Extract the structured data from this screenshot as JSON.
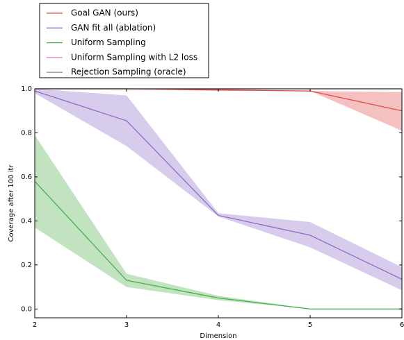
{
  "chart_data": {
    "type": "line",
    "x_label": "Dimension",
    "y_label": "Coverage after 100 itr",
    "x": [
      2,
      3,
      4,
      5,
      6
    ],
    "series": [
      {
        "name": "Goal GAN (ours)",
        "color": "#e24a4a",
        "values": [
          1.0,
          1.0,
          0.995,
          0.99,
          0.9
        ],
        "lower": [
          1.0,
          1.0,
          0.99,
          0.99,
          0.81
        ],
        "upper": [
          1.0,
          1.0,
          1.0,
          0.99,
          0.985
        ]
      },
      {
        "name": "GAN fit all (ablation)",
        "color": "#8e6cc8",
        "values": [
          0.99,
          0.855,
          0.425,
          0.335,
          0.135
        ],
        "lower": [
          0.98,
          0.74,
          0.42,
          0.28,
          0.085
        ],
        "upper": [
          1.0,
          0.97,
          0.435,
          0.395,
          0.19
        ]
      },
      {
        "name": "Uniform Sampling",
        "color": "#4daf4a",
        "values": [
          0.58,
          0.13,
          0.05,
          0.0,
          0.0
        ],
        "lower": [
          0.37,
          0.1,
          0.04,
          0.0,
          0.0
        ],
        "upper": [
          0.79,
          0.16,
          0.06,
          0.0,
          0.0
        ]
      },
      {
        "name": "Uniform Sampling with L2 loss",
        "color": "#e377c2",
        "values": [
          null,
          null,
          null,
          null,
          null
        ]
      },
      {
        "name": "Rejection Sampling (oracle)",
        "color": "#999999",
        "values": [
          1.0,
          1.0,
          1.0,
          1.0,
          1.0
        ]
      }
    ],
    "xlim": [
      2,
      6
    ],
    "xticks": [
      2,
      3,
      4,
      5,
      6
    ],
    "ylim": [
      -0.04,
      1.0
    ],
    "yticks": [
      {
        "value": 0,
        "label": "0.0"
      },
      0.2,
      0.4,
      0.6,
      0.8,
      {
        "value": 1,
        "label": "1.0"
      }
    ],
    "legend": "upper left"
  }
}
